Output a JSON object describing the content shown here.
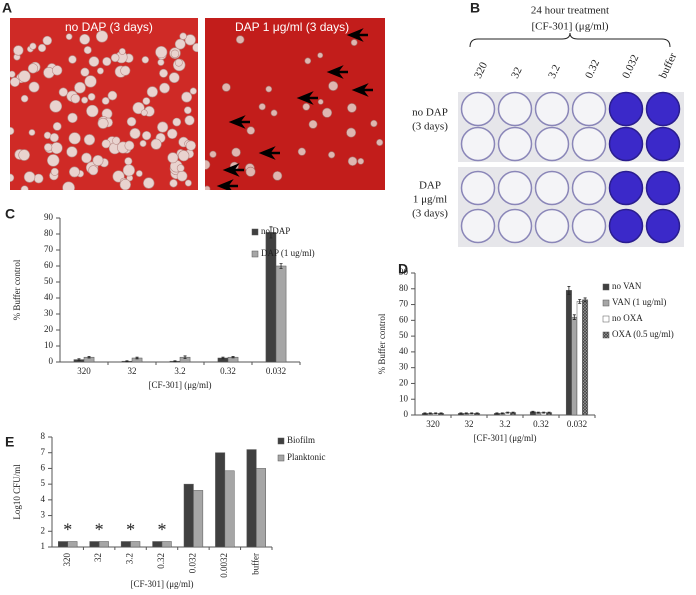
{
  "panel_a": {
    "label": "A",
    "images": [
      "no DAP (3 days)",
      "DAP 1 μg/ml (3 days)"
    ]
  },
  "panel_b": {
    "label": "B",
    "title": "24 hour treatment",
    "subtitle": "[CF-301] (μg/ml)",
    "columns": [
      "320",
      "32",
      "3.2",
      "0.32",
      "0.032",
      "buffer"
    ],
    "rows": [
      [
        "no DAP",
        "(3 days)"
      ],
      [
        "DAP",
        "1 μg/ml",
        "(3 days)"
      ]
    ]
  },
  "chart_data": [
    {
      "type": "bar",
      "panel_label": "C",
      "ylabel": "% Buffer  control",
      "xlabel": "[CF-301] (μg/ml)",
      "categories": [
        "320",
        "32",
        "3.2",
        "0.32",
        "0.032"
      ],
      "series": [
        {
          "name": "no DAP",
          "color": "#404040",
          "values": [
            1.5,
            0.5,
            0.5,
            2.5,
            81
          ],
          "errors": [
            0.5,
            0.3,
            0.3,
            0.5,
            3.5
          ]
        },
        {
          "name": "DAP (1 ug/ml)",
          "color": "#a6a6a6",
          "values": [
            3,
            2.5,
            3,
            3,
            60
          ],
          "errors": [
            0.5,
            0.5,
            0.8,
            0.4,
            1.5
          ]
        }
      ],
      "ylim": [
        0,
        90
      ],
      "yticks": [
        0,
        10,
        20,
        30,
        40,
        50,
        60,
        70,
        80,
        90
      ],
      "legend": "upper right"
    },
    {
      "type": "bar",
      "panel_label": "D",
      "ylabel": "% Buffer  control",
      "xlabel": "[CF-301] (μg/ml)",
      "categories": [
        "320",
        "32",
        "3.2",
        "0.32",
        "0.032"
      ],
      "series": [
        {
          "name": "no VAN",
          "color": "#404040",
          "values": [
            1,
            1,
            1,
            2,
            79
          ],
          "errors": [
            0.3,
            0.3,
            0.3,
            0.4,
            2.5
          ]
        },
        {
          "name": "VAN (1 ug/ml)",
          "color": "#a6a6a6",
          "values": [
            1,
            1,
            1,
            1.5,
            62
          ],
          "errors": [
            0.3,
            0.3,
            0.3,
            0.3,
            1.5
          ]
        },
        {
          "name": "no OXA",
          "color": "#ffffff",
          "values": [
            1,
            1,
            1.5,
            1.5,
            72
          ],
          "errors": [
            0.3,
            0.3,
            0.3,
            0.3,
            1.2
          ]
        },
        {
          "name": "OXA (0.5 ug/ml)",
          "color": "#404040",
          "hatch": true,
          "values": [
            1,
            1,
            1.5,
            1.5,
            73
          ],
          "errors": [
            0.3,
            0.3,
            0.3,
            0.3,
            1.2
          ]
        }
      ],
      "ylim": [
        0,
        90
      ],
      "yticks": [
        0,
        10,
        20,
        30,
        40,
        50,
        60,
        70,
        80,
        90
      ],
      "legend": "right"
    },
    {
      "type": "bar",
      "panel_label": "E",
      "ylabel": "Log10 CFU/ml",
      "xlabel": "[CF-301] (μg/ml)",
      "categories": [
        "320",
        "32",
        "3.2",
        "0.32",
        "0.032",
        "0.0032",
        "buffer"
      ],
      "series": [
        {
          "name": "Biofilm",
          "color": "#404040",
          "values": [
            1.35,
            1.35,
            1.35,
            1.35,
            5,
            7,
            7.2
          ]
        },
        {
          "name": "Planktonic",
          "color": "#a6a6a6",
          "values": [
            1.35,
            1.35,
            1.35,
            1.35,
            4.6,
            5.85,
            6
          ]
        }
      ],
      "annotations": [
        "*",
        "*",
        "*",
        "*"
      ],
      "ylim": [
        1,
        8
      ],
      "yticks": [
        1,
        2,
        3,
        4,
        5,
        6,
        7,
        8
      ],
      "legend": "upper right"
    }
  ]
}
